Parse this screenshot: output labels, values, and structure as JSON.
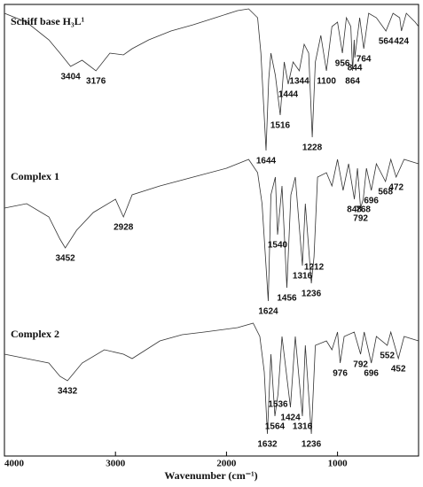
{
  "chart_data": {
    "type": "line",
    "xlabel": "Wavenumber (cm⁻¹)",
    "xlim": [
      4000,
      270
    ],
    "xticks": [
      4000,
      3000,
      2000,
      1000
    ],
    "ylim": [
      0,
      102
    ],
    "series": [
      {
        "name": "Schiff base H₃L¹",
        "color": "#333333",
        "x": [
          4000,
          3800,
          3600,
          3500,
          3404,
          3300,
          3176,
          3050,
          2928,
          2850,
          2700,
          2500,
          2300,
          2100,
          1900,
          1800,
          1720,
          1690,
          1644,
          1620,
          1600,
          1560,
          1516,
          1480,
          1444,
          1400,
          1344,
          1300,
          1260,
          1228,
          1200,
          1150,
          1100,
          1050,
          1000,
          956,
          920,
          880,
          864,
          850,
          844,
          800,
          764,
          720,
          650,
          564,
          500,
          440,
          424,
          380,
          300,
          270
        ],
        "values": [
          100,
          98,
          94,
          91,
          88,
          89.4,
          87,
          91,
          90.6,
          92,
          94,
          96,
          97.4,
          99,
          100.6,
          101,
          99,
          91,
          69,
          85,
          91,
          86,
          77,
          89,
          84,
          89,
          87,
          93,
          91,
          72,
          89,
          95,
          87,
          97,
          98,
          91,
          99,
          97,
          87,
          94,
          90,
          99,
          92,
          100,
          99,
          96,
          100,
          99,
          96,
          100,
          98,
          97
        ],
        "peaks": [
          3404,
          3176,
          1644,
          1516,
          1444,
          1344,
          1228,
          1100,
          956,
          864,
          844,
          764,
          564,
          424
        ]
      },
      {
        "name": "Complex 1",
        "color": "#333333",
        "x": [
          4000,
          3800,
          3600,
          3500,
          3452,
          3350,
          3200,
          3000,
          2928,
          2850,
          2600,
          2300,
          2000,
          1800,
          1720,
          1680,
          1624,
          1600,
          1560,
          1540,
          1500,
          1456,
          1420,
          1380,
          1316,
          1290,
          1236,
          1212,
          1180,
          1100,
          1050,
          1000,
          950,
          900,
          848,
          820,
          792,
          768,
          740,
          696,
          650,
          568,
          520,
          472,
          400,
          270
        ],
        "values": [
          56,
          57,
          54,
          49,
          47,
          51,
          55,
          58,
          54,
          59,
          61,
          63,
          65,
          67,
          64,
          57,
          35,
          59,
          63,
          50,
          61,
          38,
          59,
          63,
          43,
          57,
          39,
          45,
          63,
          64,
          61,
          67,
          60,
          66,
          58,
          65,
          56,
          58,
          65,
          60,
          66,
          62,
          67,
          63,
          67,
          66
        ],
        "peaks": [
          3452,
          2928,
          1624,
          1540,
          1456,
          1316,
          1236,
          1212,
          848,
          792,
          768,
          696,
          568,
          472
        ]
      },
      {
        "name": "Complex 2",
        "color": "#333333",
        "x": [
          4000,
          3800,
          3600,
          3500,
          3432,
          3300,
          3100,
          2928,
          2850,
          2600,
          2400,
          2200,
          1900,
          1760,
          1700,
          1660,
          1632,
          1600,
          1564,
          1536,
          1500,
          1424,
          1380,
          1316,
          1290,
          1236,
          1200,
          1100,
          1050,
          1000,
          976,
          940,
          850,
          792,
          760,
          696,
          650,
          552,
          520,
          452,
          400,
          270
        ],
        "values": [
          23,
          22,
          21,
          18,
          17,
          21,
          24,
          23,
          22,
          26,
          27.4,
          28,
          29,
          30,
          27,
          19,
          5,
          23,
          9,
          14,
          27,
          11,
          27,
          9,
          25,
          5,
          25,
          26,
          24,
          28,
          21,
          27,
          28,
          23,
          28,
          21,
          27,
          25,
          28,
          22,
          27,
          26
        ],
        "peaks": [
          3432,
          1632,
          1564,
          1536,
          1424,
          1316,
          1236,
          976,
          792,
          696,
          552,
          452
        ]
      }
    ]
  }
}
